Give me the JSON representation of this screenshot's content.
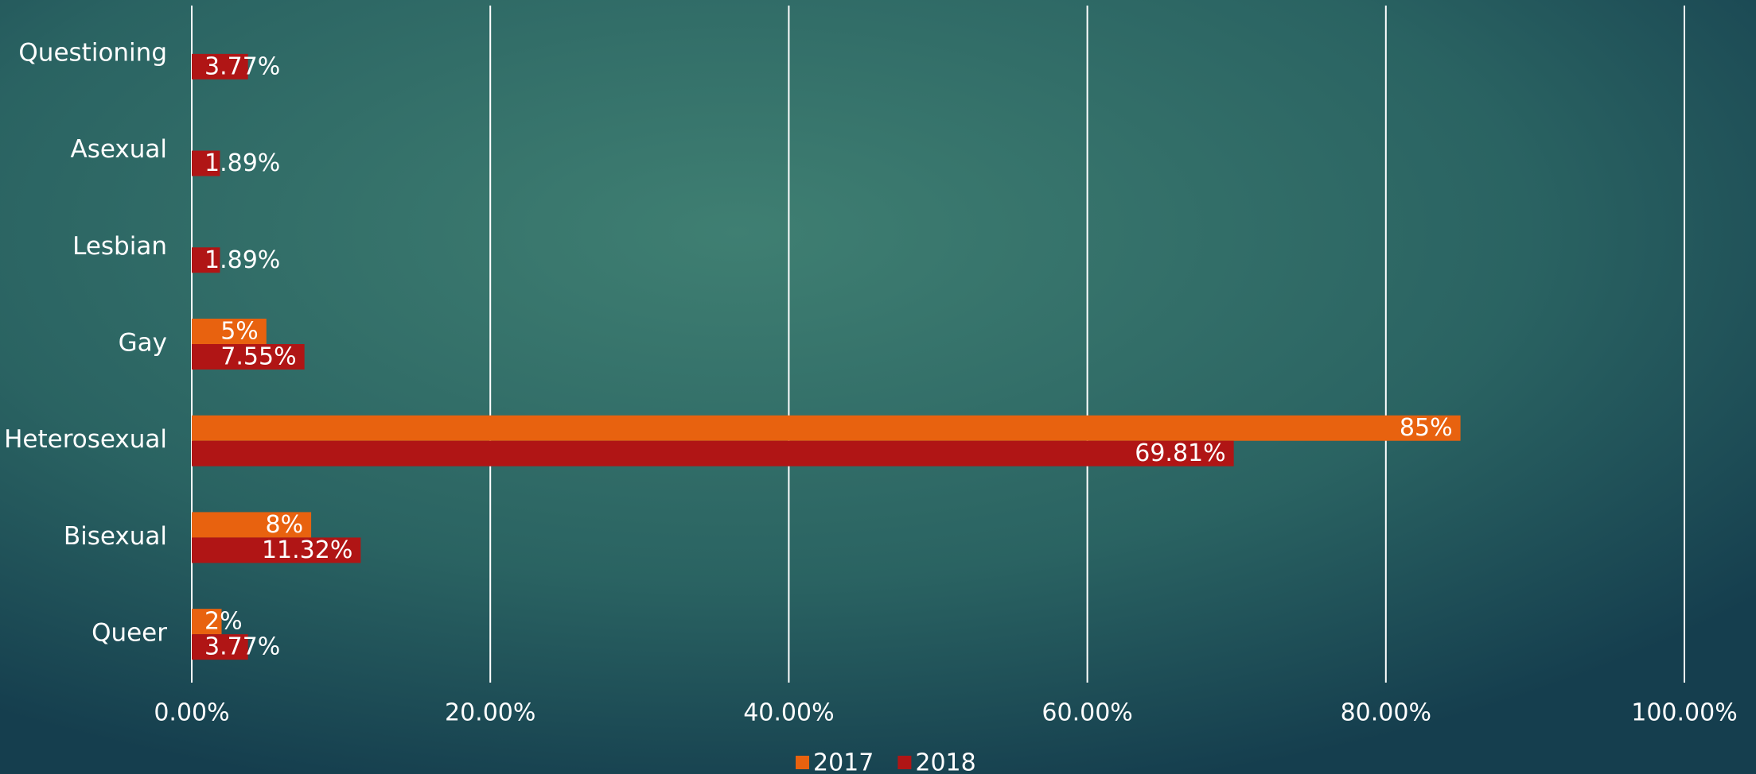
{
  "chart_data": {
    "type": "hbar",
    "categories": [
      "Questioning",
      "Asexual",
      "Lesbian",
      "Gay",
      "Heterosexual",
      "Bisexual",
      "Queer"
    ],
    "series": [
      {
        "name": "2017",
        "color": "#e8620f",
        "values": [
          null,
          null,
          null,
          5,
          85,
          8,
          2
        ],
        "value_labels": [
          null,
          null,
          null,
          "5%",
          "85%",
          "8%",
          "2%"
        ]
      },
      {
        "name": "2018",
        "color": "#b01515",
        "values": [
          3.77,
          1.89,
          1.89,
          7.55,
          69.81,
          11.32,
          3.77
        ],
        "value_labels": [
          "3.77%",
          "1.89%",
          "1.89%",
          "7.55%",
          "69.81%",
          "11.32%",
          "3.77%"
        ]
      }
    ],
    "xlim": [
      0,
      100
    ],
    "xticks": [
      {
        "value": 0,
        "label": "0.00%"
      },
      {
        "value": 20,
        "label": "20.00%"
      },
      {
        "value": 40,
        "label": "40.00%"
      },
      {
        "value": 60,
        "label": "60.00%"
      },
      {
        "value": 80,
        "label": "80.00%"
      },
      {
        "value": 100,
        "label": "100.00%"
      }
    ],
    "grid": true,
    "legend": "bottom"
  }
}
